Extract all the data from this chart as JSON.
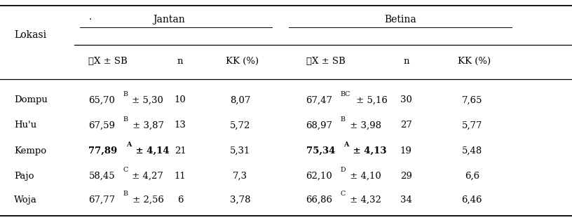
{
  "bg_color": "#ffffff",
  "text_color": "#000000",
  "font_size": 9.5,
  "header_font_size": 10,
  "col_x": {
    "lokasi": 0.025,
    "j_xsb": 0.155,
    "j_n": 0.315,
    "j_kk": 0.395,
    "b_xsb": 0.535,
    "b_n": 0.71,
    "b_kk": 0.8
  },
  "rows": [
    {
      "lokasi": "Dompu",
      "j_main": "65,70",
      "j_sup": "B",
      "j_sd": " ± 5,30",
      "j_bold": false,
      "j_n": "10",
      "j_kk": "8,07",
      "b_main": "67,47",
      "b_sup": "BC",
      "b_sd": " ± 5,16",
      "b_bold": false,
      "b_n": "30",
      "b_kk": "7,65"
    },
    {
      "lokasi": "Hu'u",
      "j_main": "67,59",
      "j_sup": "B",
      "j_sd": " ± 3,87",
      "j_bold": false,
      "j_n": "13",
      "j_kk": "5,72",
      "b_main": "68,97",
      "b_sup": "B",
      "b_sd": " ± 3,98",
      "b_bold": false,
      "b_n": "27",
      "b_kk": "5,77"
    },
    {
      "lokasi": "Kempo",
      "j_main": "77,89",
      "j_sup": "A",
      "j_sd": " ± 4,14",
      "j_bold": true,
      "j_n": "21",
      "j_kk": "5,31",
      "b_main": "75,34",
      "b_sup": "A",
      "b_sd": " ± 4,13",
      "b_bold": true,
      "b_n": "19",
      "b_kk": "5,48"
    },
    {
      "lokasi": "Pajo",
      "j_main": "58,45",
      "j_sup": "C",
      "j_sd": " ± 4,27",
      "j_bold": false,
      "j_n": "11",
      "j_kk": "7,3",
      "b_main": "62,10",
      "b_sup": "D",
      "b_sd": " ± 4,10",
      "b_bold": false,
      "b_n": "29",
      "b_kk": "6,6"
    },
    {
      "lokasi": "Woja",
      "j_main": "67,77",
      "j_sup": "B",
      "j_sd": " ± 2,56",
      "j_bold": false,
      "j_n": "6",
      "j_kk": "3,78",
      "b_main": "66,86",
      "b_sup": "C",
      "b_sd": " ± 4,32",
      "b_bold": false,
      "b_n": "34",
      "b_kk": "6,46"
    }
  ]
}
